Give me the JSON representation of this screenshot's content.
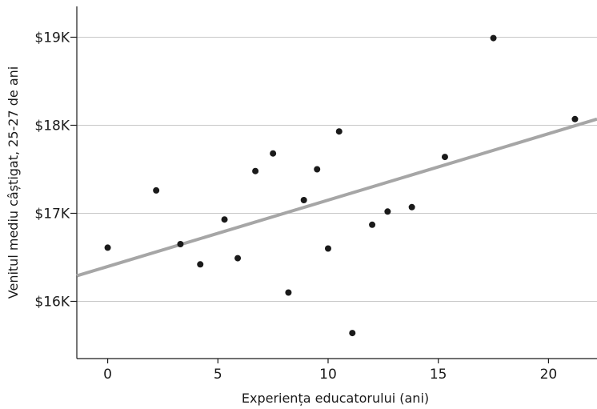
{
  "chart_data": {
    "type": "scatter",
    "title": "",
    "xlabel": "Experiența educatorului (ani)",
    "ylabel": "Venitul mediu câștigat, 25-27 de ani",
    "xlim": [
      -1.4,
      22.2
    ],
    "ylim": [
      15.35,
      19.35
    ],
    "x_ticks": [
      0,
      5,
      10,
      15,
      20
    ],
    "x_tick_labels": [
      "0",
      "5",
      "10",
      "15",
      "20"
    ],
    "y_ticks": [
      16,
      17,
      18,
      19
    ],
    "y_tick_labels": [
      "$16K",
      "$17K",
      "$18K",
      "$19K"
    ],
    "grid": "horizontal",
    "points": [
      {
        "x": 0.0,
        "y": 16.61
      },
      {
        "x": 2.2,
        "y": 17.26
      },
      {
        "x": 3.3,
        "y": 16.65
      },
      {
        "x": 4.2,
        "y": 16.42
      },
      {
        "x": 5.3,
        "y": 16.93
      },
      {
        "x": 5.9,
        "y": 16.49
      },
      {
        "x": 6.7,
        "y": 17.48
      },
      {
        "x": 7.5,
        "y": 17.68
      },
      {
        "x": 8.2,
        "y": 16.1
      },
      {
        "x": 8.9,
        "y": 17.15
      },
      {
        "x": 9.5,
        "y": 17.5
      },
      {
        "x": 10.0,
        "y": 16.6
      },
      {
        "x": 10.5,
        "y": 17.93
      },
      {
        "x": 11.1,
        "y": 15.64
      },
      {
        "x": 12.0,
        "y": 16.87
      },
      {
        "x": 12.7,
        "y": 17.02
      },
      {
        "x": 13.8,
        "y": 17.07
      },
      {
        "x": 15.3,
        "y": 17.64
      },
      {
        "x": 17.5,
        "y": 18.99
      },
      {
        "x": 21.2,
        "y": 18.07
      }
    ],
    "trendline": {
      "x": [
        -1.4,
        22.2
      ],
      "y": [
        16.29,
        18.07
      ]
    },
    "colors": {
      "points": "#1a1a1a",
      "trendline": "#a6a6a6",
      "grid": "#c8c8c8",
      "axis": "#1a1a1a"
    }
  }
}
